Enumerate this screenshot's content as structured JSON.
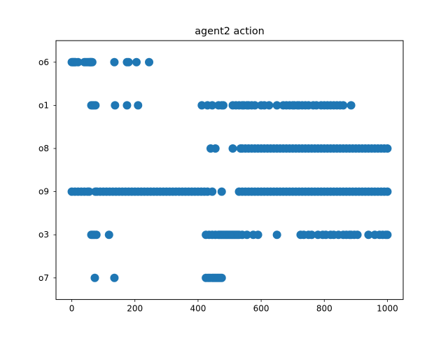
{
  "chart_data": {
    "type": "scatter",
    "title": "agent2 action",
    "xlabel": "",
    "ylabel": "",
    "xlim": [
      -50,
      1050
    ],
    "x_ticks": [
      0,
      200,
      400,
      600,
      800,
      1000
    ],
    "categories": [
      "o7",
      "o3",
      "o9",
      "o8",
      "o1",
      "o6"
    ],
    "grid": false,
    "color": "#1f77b4",
    "series": [
      {
        "category": "o6",
        "x": [
          0,
          3,
          6,
          9,
          12,
          20,
          40,
          45,
          50,
          55,
          58,
          60,
          62,
          65,
          135,
          175,
          180,
          205,
          245
        ]
      },
      {
        "category": "o1",
        "x": [
          62,
          66,
          70,
          75,
          137,
          175,
          210,
          412,
          430,
          445,
          465,
          475,
          480,
          510,
          520,
          530,
          540,
          545,
          555,
          560,
          570,
          580,
          600,
          610,
          625,
          650,
          670,
          680,
          690,
          700,
          705,
          715,
          720,
          730,
          740,
          750,
          765,
          775,
          790,
          800,
          810,
          820,
          830,
          840,
          850,
          860,
          885
        ]
      },
      {
        "category": "o8",
        "x": [
          440,
          455,
          510,
          535,
          540,
          550,
          560,
          570,
          580,
          590,
          600,
          610,
          620,
          630,
          640,
          650,
          660,
          670,
          680,
          690,
          700,
          710,
          720,
          730,
          740,
          750,
          760,
          770,
          780,
          790,
          800,
          810,
          820,
          830,
          840,
          850,
          860,
          870,
          880,
          890,
          900,
          910,
          920,
          930,
          940,
          950,
          960,
          970,
          980,
          990,
          1000
        ]
      },
      {
        "category": "o9",
        "x": [
          0,
          10,
          20,
          30,
          40,
          50,
          55,
          75,
          80,
          90,
          100,
          110,
          120,
          130,
          140,
          150,
          160,
          170,
          180,
          190,
          200,
          210,
          220,
          230,
          240,
          250,
          260,
          270,
          280,
          290,
          300,
          310,
          320,
          330,
          340,
          350,
          360,
          370,
          380,
          390,
          400,
          410,
          420,
          430,
          445,
          475,
          530,
          540,
          550,
          560,
          570,
          580,
          590,
          600,
          610,
          620,
          630,
          640,
          650,
          660,
          670,
          680,
          690,
          700,
          710,
          720,
          730,
          740,
          750,
          760,
          770,
          780,
          790,
          800,
          810,
          820,
          830,
          840,
          850,
          860,
          870,
          880,
          890,
          900,
          910,
          920,
          930,
          940,
          950,
          960,
          970,
          980,
          990,
          1000
        ]
      },
      {
        "category": "o3",
        "x": [
          62,
          67,
          72,
          78,
          118,
          425,
          435,
          445,
          455,
          465,
          470,
          475,
          480,
          485,
          490,
          495,
          500,
          505,
          510,
          515,
          520,
          525,
          530,
          540,
          555,
          575,
          590,
          650,
          725,
          735,
          750,
          760,
          780,
          795,
          805,
          820,
          830,
          845,
          860,
          870,
          880,
          885,
          895,
          905,
          940,
          960,
          975,
          985,
          995,
          1000
        ]
      },
      {
        "category": "o7",
        "x": [
          73,
          135,
          425,
          432,
          438,
          445,
          450,
          455,
          460,
          465,
          470,
          475
        ]
      }
    ]
  }
}
